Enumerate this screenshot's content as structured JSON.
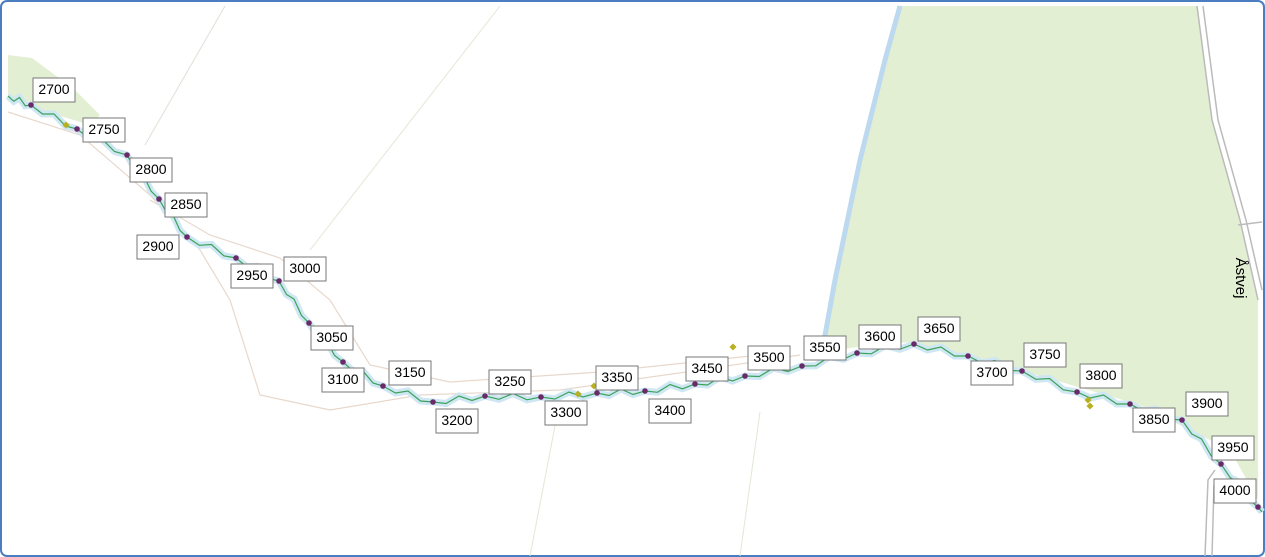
{
  "markers": [
    {
      "label": "2700"
    },
    {
      "label": "2750"
    },
    {
      "label": "2800"
    },
    {
      "label": "2850"
    },
    {
      "label": "2900"
    },
    {
      "label": "2950"
    },
    {
      "label": "3000"
    },
    {
      "label": "3050"
    },
    {
      "label": "3100"
    },
    {
      "label": "3150"
    },
    {
      "label": "3200"
    },
    {
      "label": "3250"
    },
    {
      "label": "3300"
    },
    {
      "label": "3350"
    },
    {
      "label": "3400"
    },
    {
      "label": "3450"
    },
    {
      "label": "3500"
    },
    {
      "label": "3550"
    },
    {
      "label": "3600"
    },
    {
      "label": "3650"
    },
    {
      "label": "3700"
    },
    {
      "label": "3750"
    },
    {
      "label": "3800"
    },
    {
      "label": "3850"
    },
    {
      "label": "3900"
    },
    {
      "label": "3950"
    },
    {
      "label": "4000"
    }
  ],
  "road_label": "Åstvej"
}
